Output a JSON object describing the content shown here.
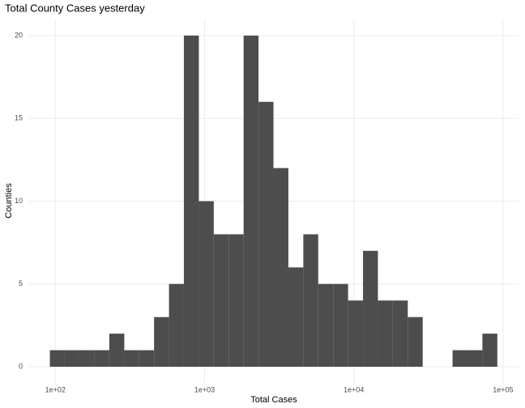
{
  "chart_data": {
    "type": "histogram",
    "title": "Total County Cases yesterday",
    "x_label": "Total Cases",
    "y_label": "Counties",
    "bins": [
      92,
      115,
      145,
      183,
      230,
      290,
      365,
      459,
      578,
      727,
      916,
      1153,
      1451,
      1827,
      2300,
      2896,
      3646,
      4590,
      5778,
      7274,
      9157,
      11528,
      14513,
      18271,
      23002,
      28958,
      36456,
      45895,
      57778,
      72738,
      91571
    ],
    "counts": [
      1,
      1,
      1,
      1,
      2,
      1,
      1,
      3,
      5,
      20,
      10,
      8,
      8,
      20,
      16,
      12,
      6,
      8,
      5,
      5,
      4,
      7,
      4,
      4,
      3,
      0,
      0,
      1,
      1,
      2
    ],
    "color": "#4d4d4d",
    "log_x": true,
    "grid": true,
    "xlim": [
      66,
      127000
    ],
    "xticks": [
      {
        "value": 100,
        "label": "1e+02"
      },
      {
        "value": 1000,
        "label": "1e+03"
      },
      {
        "value": 10000,
        "label": "1e+04"
      },
      {
        "value": 100000,
        "label": "1e+05"
      }
    ],
    "ylim": [
      -1,
      21
    ],
    "yticks": [
      0,
      5,
      10,
      15,
      20
    ]
  }
}
